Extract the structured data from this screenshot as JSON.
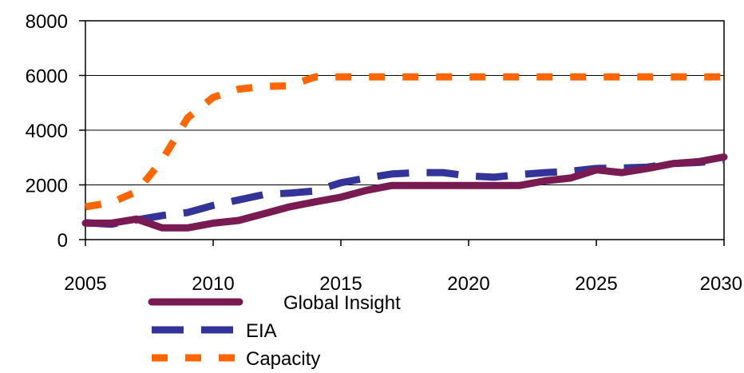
{
  "chart_data": {
    "type": "line",
    "title": "",
    "xlabel": "",
    "ylabel": "",
    "xlim": [
      2005,
      2030
    ],
    "ylim": [
      0,
      8000
    ],
    "x_ticks": [
      "2005",
      "2010",
      "2015",
      "2020",
      "2025",
      "2030"
    ],
    "y_ticks": [
      "0",
      "2000",
      "4000",
      "6000",
      "8000"
    ],
    "grid": "horizontal",
    "legend_position": "bottom",
    "series": [
      {
        "name": "Global Insight",
        "color": "#7a1a52",
        "style": "solid",
        "points": [
          [
            2005,
            600
          ],
          [
            2006,
            600
          ],
          [
            2007,
            750
          ],
          [
            2008,
            430
          ],
          [
            2009,
            430
          ],
          [
            2010,
            600
          ],
          [
            2011,
            700
          ],
          [
            2012,
            950
          ],
          [
            2013,
            1200
          ],
          [
            2014,
            1380
          ],
          [
            2015,
            1550
          ],
          [
            2016,
            1800
          ],
          [
            2017,
            1980
          ],
          [
            2018,
            1980
          ],
          [
            2019,
            1980
          ],
          [
            2020,
            1980
          ],
          [
            2021,
            1980
          ],
          [
            2022,
            1980
          ],
          [
            2023,
            2150
          ],
          [
            2024,
            2250
          ],
          [
            2025,
            2550
          ],
          [
            2026,
            2450
          ],
          [
            2027,
            2600
          ],
          [
            2028,
            2780
          ],
          [
            2029,
            2850
          ],
          [
            2030,
            3020
          ]
        ]
      },
      {
        "name": "EIA",
        "color": "#333399",
        "style": "dashed",
        "points": [
          [
            2005,
            620
          ],
          [
            2006,
            560
          ],
          [
            2007,
            720
          ],
          [
            2008,
            880
          ],
          [
            2009,
            990
          ],
          [
            2010,
            1250
          ],
          [
            2011,
            1450
          ],
          [
            2012,
            1650
          ],
          [
            2013,
            1700
          ],
          [
            2014,
            1780
          ],
          [
            2015,
            2080
          ],
          [
            2016,
            2250
          ],
          [
            2017,
            2400
          ],
          [
            2018,
            2450
          ],
          [
            2019,
            2450
          ],
          [
            2020,
            2330
          ],
          [
            2021,
            2280
          ],
          [
            2022,
            2380
          ],
          [
            2023,
            2450
          ],
          [
            2024,
            2500
          ],
          [
            2025,
            2600
          ],
          [
            2026,
            2620
          ],
          [
            2027,
            2650
          ],
          [
            2028,
            2780
          ],
          [
            2029,
            2820
          ],
          [
            2030,
            2900
          ]
        ]
      },
      {
        "name": "Capacity",
        "color": "#ff6600",
        "style": "dashed",
        "points": [
          [
            2005,
            1200
          ],
          [
            2006,
            1350
          ],
          [
            2007,
            1750
          ],
          [
            2008,
            2900
          ],
          [
            2009,
            4450
          ],
          [
            2010,
            5200
          ],
          [
            2011,
            5500
          ],
          [
            2012,
            5600
          ],
          [
            2013,
            5620
          ],
          [
            2014,
            5950
          ],
          [
            2015,
            5950
          ],
          [
            2016,
            5950
          ],
          [
            2017,
            5950
          ],
          [
            2018,
            5950
          ],
          [
            2019,
            5950
          ],
          [
            2020,
            5950
          ],
          [
            2021,
            5950
          ],
          [
            2022,
            5950
          ],
          [
            2023,
            5950
          ],
          [
            2024,
            5950
          ],
          [
            2025,
            5950
          ],
          [
            2026,
            5950
          ],
          [
            2027,
            5950
          ],
          [
            2028,
            5950
          ],
          [
            2029,
            5950
          ],
          [
            2030,
            5950
          ]
        ]
      }
    ]
  }
}
